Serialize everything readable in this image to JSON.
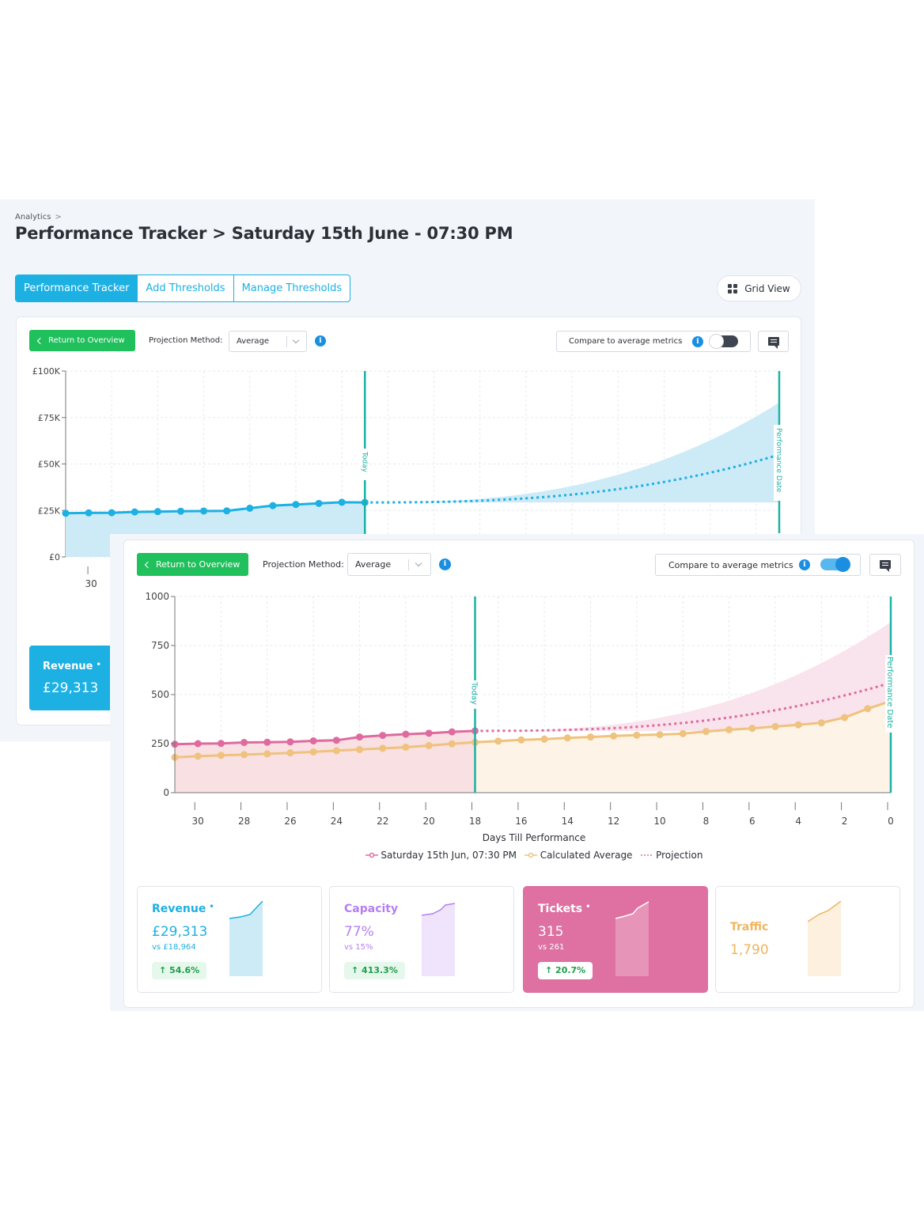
{
  "breadcrumb": {
    "item": "Analytics",
    "separator": ">"
  },
  "page_title": "Performance Tracker > Saturday 15th June - 07:30 PM",
  "tabs": [
    {
      "label": "Performance Tracker",
      "active": true
    },
    {
      "label": "Add Thresholds",
      "active": false
    },
    {
      "label": "Manage Thresholds",
      "active": false
    }
  ],
  "grid_view": {
    "label": "Grid View",
    "icon": "grid-icon"
  },
  "controls": {
    "return_label": "Return to Overview",
    "projection_label": "Projection Method:",
    "projection_value": "Average",
    "compare_label": "Compare to average metrics",
    "back_compare_enabled": false,
    "front_compare_enabled": true
  },
  "markers": {
    "today": "Today",
    "performance_date": "Performance Date"
  },
  "colors": {
    "accent_blue": "#1cb0e3",
    "green": "#20c05c",
    "pink": "#de6a9f",
    "orange": "#efc27d",
    "purple": "#b57ff0",
    "teal": "#1bb2a4"
  },
  "chart_data": [
    {
      "type": "line",
      "name": "revenue-chart",
      "y_ticks": [
        "£100K",
        "£75K",
        "£50K",
        "£25K",
        "£0"
      ],
      "ylim": [
        0,
        100000
      ],
      "x_ticks": [
        "30"
      ],
      "actual_x": [
        31,
        30,
        29,
        28,
        27,
        26,
        25,
        24,
        23,
        22,
        21,
        20,
        19,
        18
      ],
      "actual_y": [
        23500,
        23700,
        23800,
        24200,
        24400,
        24600,
        24700,
        24800,
        26200,
        27600,
        28200,
        28800,
        29400,
        29313
      ],
      "projection_end": 55000,
      "band_upper_end": 83000,
      "grid": true
    },
    {
      "type": "line",
      "name": "tickets-chart",
      "y_ticks": [
        "1000",
        "750",
        "500",
        "250",
        "0"
      ],
      "ylim": [
        0,
        1000
      ],
      "x_ticks": [
        "30",
        "28",
        "26",
        "24",
        "22",
        "20",
        "18",
        "16",
        "14",
        "12",
        "10",
        "8",
        "6",
        "4",
        "2",
        "0"
      ],
      "xlabel": "Days Till Performance",
      "series": [
        {
          "name": "Saturday 15th Jun, 07:30 PM",
          "x": [
            31,
            30,
            29,
            28,
            27,
            26,
            25,
            24,
            23,
            22,
            21,
            20,
            19,
            18
          ],
          "values": [
            247,
            250,
            251,
            256,
            257,
            259,
            264,
            267,
            284,
            292,
            298,
            303,
            310,
            315
          ]
        },
        {
          "name": "Calculated Average",
          "x": [
            31,
            30,
            29,
            28,
            27,
            26,
            25,
            24,
            23,
            22,
            21,
            20,
            19,
            18,
            17,
            16,
            15,
            14,
            13,
            12,
            11,
            10,
            9,
            8,
            7,
            6,
            5,
            4,
            3,
            2,
            1,
            0
          ],
          "values": [
            180,
            186,
            190,
            194,
            198,
            203,
            208,
            214,
            220,
            226,
            232,
            240,
            249,
            257,
            263,
            269,
            273,
            279,
            284,
            289,
            293,
            296,
            301,
            312,
            321,
            328,
            337,
            346,
            356,
            383,
            428,
            467
          ]
        },
        {
          "name": "Projection",
          "start": 315,
          "end": 560
        }
      ],
      "band_upper_end": 870,
      "grid": true
    }
  ],
  "back_revenue": {
    "title": "Revenue",
    "value": "£29,313"
  },
  "metrics": [
    {
      "title": "Revenue",
      "value": "£29,313",
      "compare": "vs £18,964",
      "change": "54.6%",
      "star": "•"
    },
    {
      "title": "Capacity",
      "value": "77%",
      "compare": "vs 15%",
      "change": "413.3%"
    },
    {
      "title": "Tickets",
      "value": "315",
      "compare": "vs 261",
      "change": "20.7%",
      "star": "•",
      "selected": true
    },
    {
      "title": "Traffic",
      "value": "1,790"
    }
  ]
}
